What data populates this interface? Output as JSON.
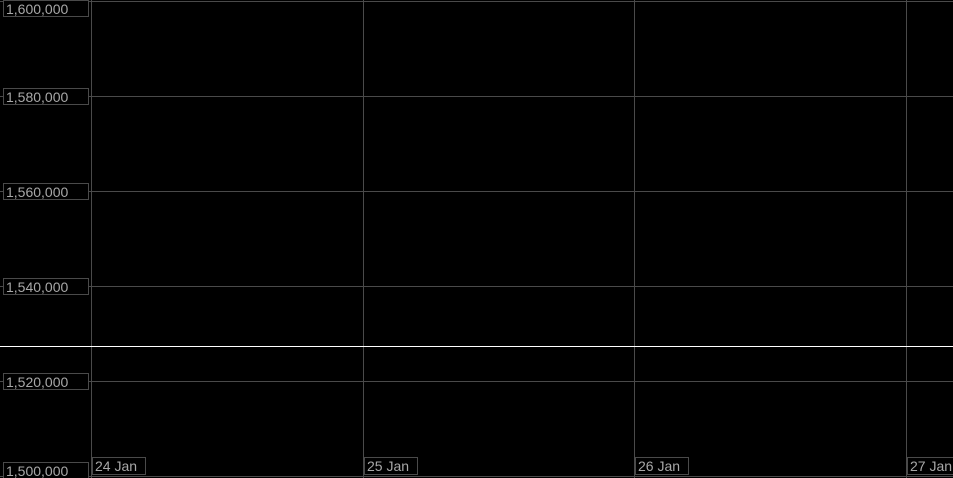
{
  "chart_data": {
    "type": "line",
    "title": "",
    "xlabel": "",
    "ylabel": "",
    "ylim": [
      1500000,
      1600000
    ],
    "xlim": [
      "2000-01-24T00:00",
      "2000-01-27T04:10"
    ],
    "yticks": [
      1500000,
      1520000,
      1540000,
      1560000,
      1580000,
      1600000
    ],
    "ytick_labels": [
      "1,500,000",
      "1,520,000",
      "1,540,000",
      "1,560,000",
      "1,580,000",
      "1,600,000"
    ],
    "xticks": [
      "2000-01-24",
      "2000-01-25",
      "2000-01-26",
      "2000-01-27"
    ],
    "xtick_labels": [
      "24 Jan",
      "25 Jan",
      "26 Jan",
      "27 Jan"
    ],
    "grid": true,
    "series": [
      {
        "x": [
          "2000-01-24T00:00",
          "2000-01-27T04:10"
        ],
        "values": [
          1527400,
          1527400
        ],
        "color": "#ffffff"
      }
    ],
    "colors": {
      "background": "#000000",
      "grid": "#4a4a4a",
      "label": "#a8a8a8",
      "line": "#ffffff"
    }
  }
}
